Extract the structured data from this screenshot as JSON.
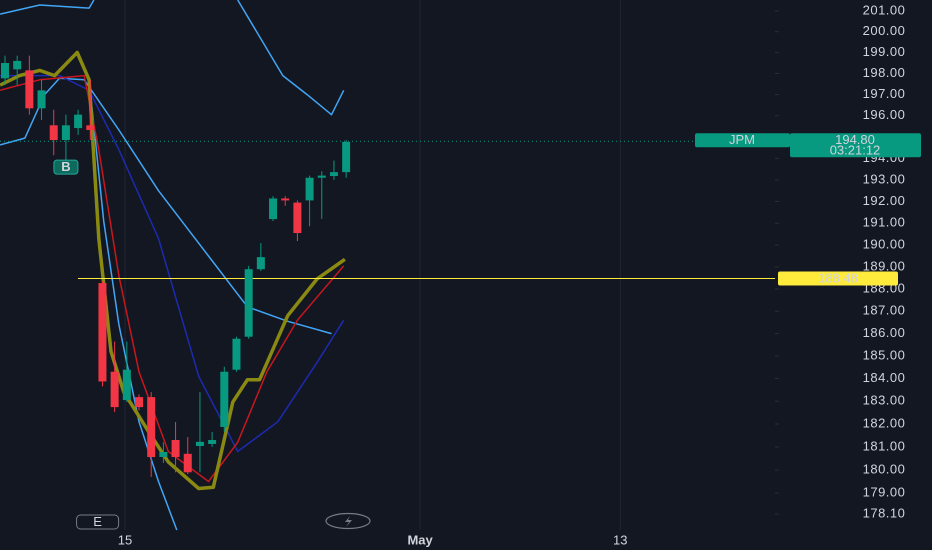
{
  "chart_data": {
    "type": "candlestick",
    "log_scale": true,
    "x": [
      0,
      1,
      2,
      3,
      4,
      5,
      6,
      7,
      8,
      9,
      10,
      11,
      12,
      13,
      14,
      15,
      16,
      17,
      18,
      19,
      20,
      21,
      22,
      23,
      24,
      25,
      26,
      27,
      28
    ],
    "open": [
      197.77,
      198.2,
      198.15,
      196.35,
      195.55,
      194.86,
      195.42,
      195.55,
      188.27,
      184.3,
      183.05,
      183.18,
      183.18,
      180.56,
      181.3,
      180.7,
      181.04,
      181.13,
      181.87,
      184.39,
      185.86,
      188.9,
      191.19,
      192.14,
      191.95,
      192.05,
      193.1,
      193.18,
      193.36
    ],
    "high": [
      198.85,
      198.85,
      198.85,
      197.7,
      196.28,
      196.05,
      196.28,
      197.7,
      188.35,
      185.64,
      185.64,
      183.3,
      183.4,
      181.2,
      182.09,
      181.43,
      183.4,
      181.65,
      184.52,
      185.86,
      189.05,
      190.09,
      192.25,
      192.25,
      192.05,
      193.2,
      193.4,
      193.9,
      194.86
    ],
    "low": [
      197.45,
      197.45,
      196.05,
      195.8,
      194.15,
      193.36,
      195.1,
      194.86,
      183.65,
      182.52,
      182.96,
      182.6,
      179.7,
      180.3,
      179.9,
      179.82,
      179.9,
      181.0,
      181.65,
      184.3,
      185.77,
      188.82,
      191.1,
      191.8,
      190.18,
      190.86,
      191.2,
      193.0,
      193.1
    ],
    "close": [
      198.5,
      198.6,
      196.35,
      197.2,
      194.86,
      195.55,
      196.05,
      195.33,
      183.87,
      182.74,
      184.39,
      182.74,
      180.56,
      180.78,
      180.56,
      179.9,
      181.22,
      181.3,
      184.3,
      185.77,
      188.9,
      189.45,
      192.14,
      192.05,
      190.55,
      193.1,
      193.2,
      193.36,
      194.77
    ],
    "up_color": "#089981",
    "down_color": "#f23645",
    "lines": [
      {
        "color": "#42a5f5",
        "width": 1.5,
        "x": [
          -0.4,
          2.85,
          6.9,
          7.3,
          13,
          19.1,
          22.8,
          24.8,
          26.8,
          27.8
        ],
        "values": [
          200.85,
          201.29,
          201.14,
          201.53,
          null,
          201.53,
          197.9,
          197.0,
          196.05,
          197.2
        ]
      },
      {
        "color": "#42a5f5",
        "width": 1.5,
        "x": [
          -0.4,
          1.63,
          3.25,
          4.47,
          6.5,
          9.35,
          12.6,
          16.7,
          19.9,
          23.2,
          26.8
        ],
        "values": [
          194.63,
          194.95,
          197.0,
          197.77,
          197.7,
          195.33,
          192.5,
          189.5,
          187.2,
          186.55,
          186.0
        ]
      },
      {
        "color": "#42a5f5",
        "width": 1.5,
        "x": [
          6.9,
          8.1,
          9.35,
          11,
          12.6,
          14.1
        ],
        "values": [
          197.7,
          191.1,
          186.4,
          182.1,
          179.5,
          177.42
        ]
      },
      {
        "color": "#1c2bb0",
        "width": 1.5,
        "x": [
          -0.4,
          4.47,
          6.9,
          9.35,
          12.6,
          15.9,
          19.1,
          22.4,
          25.6,
          27.8
        ],
        "values": [
          197.9,
          197.9,
          197.2,
          194.4,
          190.3,
          184.1,
          180.8,
          182.1,
          184.7,
          186.6
        ]
      },
      {
        "color": "#c8171e",
        "width": 1.5,
        "x": [
          -0.4,
          2.85,
          6.5,
          7.7,
          9.35,
          11,
          13.4,
          16.7,
          19.1,
          21.5,
          24,
          27.8
        ],
        "values": [
          197.2,
          197.7,
          197.9,
          194.4,
          188.6,
          184.3,
          180.8,
          179.5,
          181.2,
          184.3,
          186.6,
          189.05
        ]
      },
      {
        "color": "#8a8a12",
        "width": 3.5,
        "x": [
          -0.4,
          1.2,
          2.85,
          4.07,
          5.93,
          6.9,
          7.7,
          8.7,
          9.75,
          11.8,
          13.4,
          15.9,
          17.1,
          18.7,
          19.9,
          20.9,
          23.2,
          25.6,
          27.9
        ],
        "values": [
          197.45,
          197.9,
          198.15,
          197.9,
          199.0,
          197.7,
          190.3,
          185.2,
          183.4,
          181.65,
          180.35,
          179.2,
          179.25,
          182.96,
          183.95,
          183.95,
          186.8,
          188.45,
          189.35
        ]
      }
    ],
    "horizontal_line": {
      "value": 188.48,
      "label": "188.48",
      "color": "#ffeb3b"
    },
    "last_price": {
      "ticker": "JPM",
      "value": 194.8,
      "label": "194.80",
      "countdown": "03:21:12",
      "color": "#089981"
    },
    "markers": [
      {
        "label": "B",
        "x": 5,
        "value": 193.36
      },
      {
        "label": "E",
        "x": 7.6
      }
    ],
    "xlim": [
      -0.41,
      63.2
    ],
    "xticks": [
      {
        "value": 9.85,
        "label": "15"
      },
      {
        "value": 34.07,
        "label": "May"
      },
      {
        "value": 50.5,
        "label": "13"
      }
    ],
    "ylim": [
      177.42,
      201.53
    ],
    "yticks": [
      {
        "value": 201,
        "label": "201.00"
      },
      {
        "value": 200,
        "label": "200.00"
      },
      {
        "value": 199,
        "label": "199.00"
      },
      {
        "value": 198,
        "label": "198.00"
      },
      {
        "value": 197,
        "label": "197.00"
      },
      {
        "value": 196,
        "label": "196.00"
      },
      {
        "value": 194,
        "label": "194.00"
      },
      {
        "value": 193,
        "label": "193.00"
      },
      {
        "value": 192,
        "label": "192.00"
      },
      {
        "value": 191,
        "label": "191.00"
      },
      {
        "value": 190,
        "label": "190.00"
      },
      {
        "value": 189,
        "label": "189.00"
      },
      {
        "value": 188,
        "label": "188.00"
      },
      {
        "value": 187,
        "label": "187.00"
      },
      {
        "value": 186,
        "label": "186.00"
      },
      {
        "value": 185,
        "label": "185.00"
      },
      {
        "value": 184,
        "label": "184.00"
      },
      {
        "value": 183,
        "label": "183.00"
      },
      {
        "value": 182,
        "label": "182.00"
      },
      {
        "value": 181,
        "label": "181.00"
      },
      {
        "value": 180,
        "label": "180.00"
      },
      {
        "value": 179,
        "label": "179.00"
      },
      {
        "value": 178.1,
        "label": "178.10"
      }
    ],
    "xgrid": true
  }
}
